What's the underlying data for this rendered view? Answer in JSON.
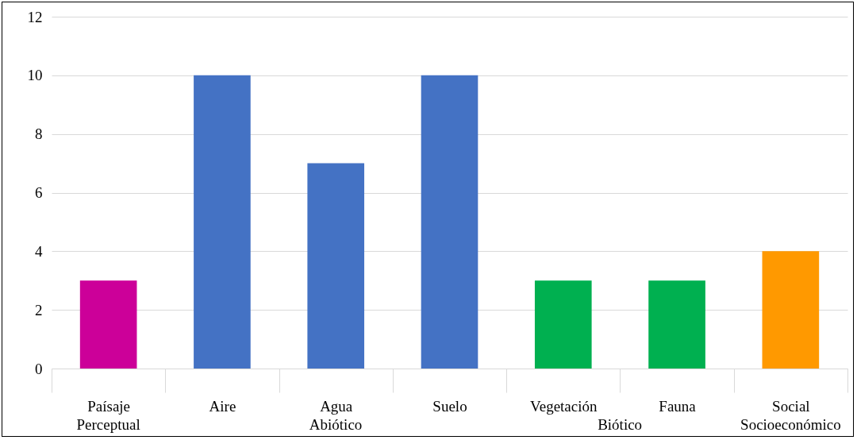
{
  "chart_data": {
    "type": "bar",
    "categories": [
      "Paísaje",
      "Aire",
      "Agua",
      "Suelo",
      "Vegetación",
      "Fauna",
      "Social"
    ],
    "values": [
      3,
      10,
      7,
      10,
      3,
      3,
      4
    ],
    "colors": [
      "#cc0099",
      "#4472c4",
      "#4472c4",
      "#4472c4",
      "#00b050",
      "#00b050",
      "#ff9900"
    ],
    "ylim": [
      0,
      12
    ],
    "yticks": [
      0,
      2,
      4,
      6,
      8,
      10,
      12
    ],
    "grid": "y",
    "annotations": [
      "Perceptual",
      "Abiótico",
      "Biótico",
      "Socioeconómico"
    ]
  }
}
